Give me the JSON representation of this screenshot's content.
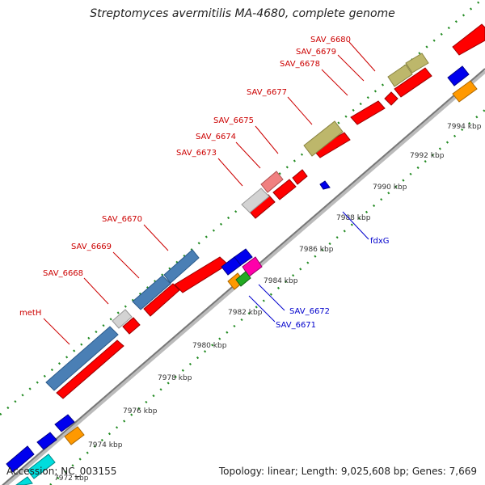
{
  "title": "Streptomyces avermitilis MA-4680, complete genome",
  "footer": {
    "accession": "Accession: NC_003155",
    "summary": "Topology: linear; Length: 9,025,608 bp; Genes: 7,669"
  },
  "colors": {
    "gene_red": "#ff0000",
    "gene_blue": "#0000ee",
    "steel_blue": "#4a7fb5",
    "khaki": "#bdb76b",
    "light_gray": "#d3d3d3",
    "pink": "#f08080",
    "orange": "#ff9900",
    "magenta": "#ff00aa",
    "cyan": "#00dddd",
    "green": "#22aa22",
    "backbone": "#888888",
    "ruler_dots": "#228B22",
    "label_red": "#cc0000",
    "label_blue": "#0000cc"
  },
  "scale_ticks": [
    {
      "label": "7972 kbp"
    },
    {
      "label": "7974 kbp"
    },
    {
      "label": "7976 kbp"
    },
    {
      "label": "7978 kbp"
    },
    {
      "label": "7980 kbp"
    },
    {
      "label": "7982 kbp"
    },
    {
      "label": "7984 kbp"
    },
    {
      "label": "7986 kbp"
    },
    {
      "label": "7988 kbp"
    },
    {
      "label": "7990 kbp"
    },
    {
      "label": "7992 kbp"
    },
    {
      "label": "7994 kbp"
    }
  ],
  "gene_labels_forward": [
    {
      "name": "metH"
    },
    {
      "name": "SAV_6668"
    },
    {
      "name": "SAV_6669"
    },
    {
      "name": "SAV_6670"
    },
    {
      "name": "SAV_6673"
    },
    {
      "name": "SAV_6674"
    },
    {
      "name": "SAV_6675"
    },
    {
      "name": "SAV_6677"
    },
    {
      "name": "SAV_6678"
    },
    {
      "name": "SAV_6679"
    },
    {
      "name": "SAV_6680"
    }
  ],
  "gene_labels_reverse": [
    {
      "name": "SAV_6671"
    },
    {
      "name": "SAV_6672"
    },
    {
      "name": "fdxG"
    }
  ]
}
